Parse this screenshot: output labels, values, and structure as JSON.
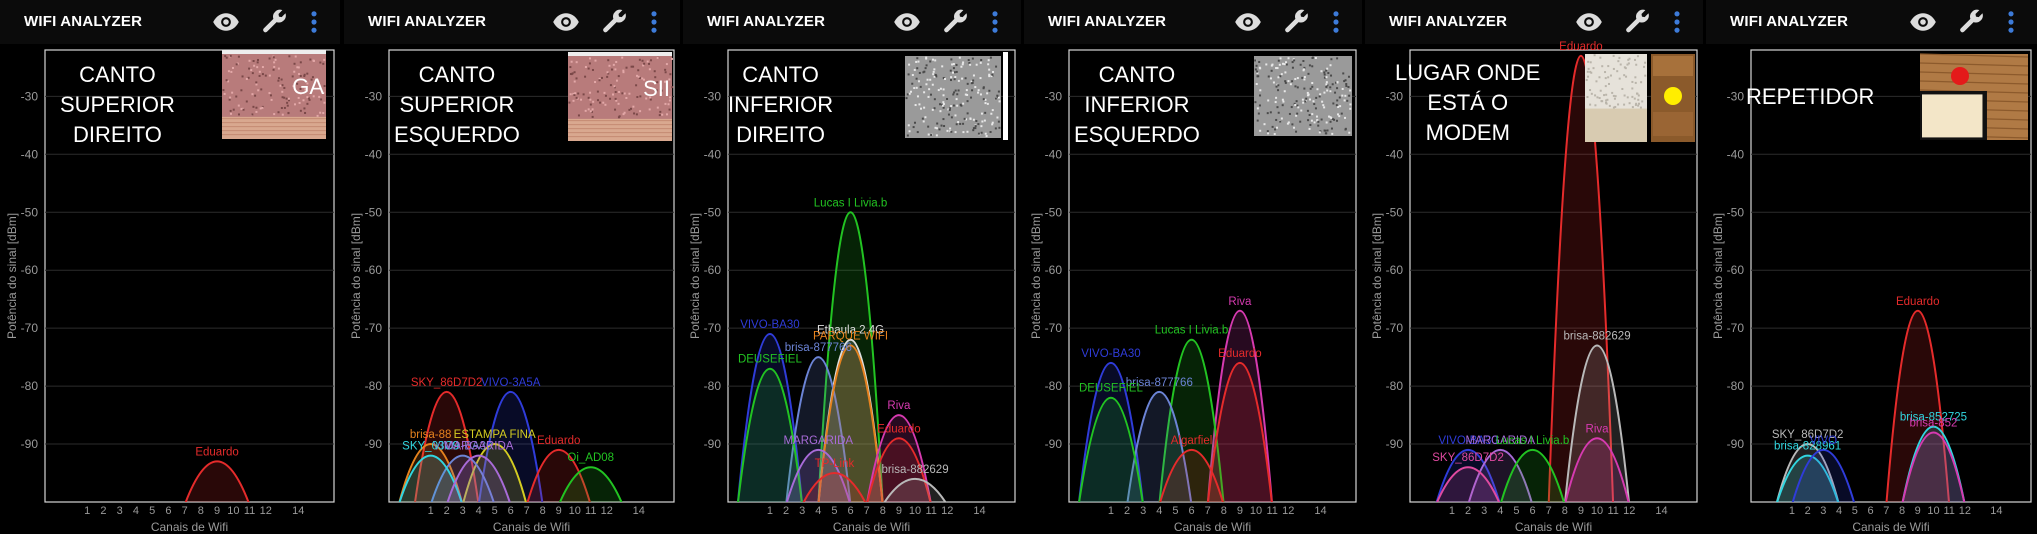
{
  "app": {
    "title": "WIFI ANALYZER",
    "icons": [
      "eye-icon",
      "wrench-icon",
      "more-vert-icon"
    ]
  },
  "axis": {
    "ylabel": "Potência do sinal [dBm]",
    "xlabel": "Canais de Wifi",
    "yticks": [
      -30,
      -40,
      -50,
      -60,
      -70,
      -80,
      -90
    ],
    "xticks": [
      1,
      2,
      3,
      4,
      5,
      6,
      7,
      8,
      9,
      10,
      11,
      12,
      14
    ]
  },
  "colors": {
    "red": "#e52b2b",
    "blue": "#2f3cd9",
    "green": "#22c322",
    "yellow": "#d4cc22",
    "white": "#dddddd",
    "pink": "#d63ab0",
    "cyan": "#31d6e0",
    "violet": "#a86bd8",
    "lightblue": "#6c84d6",
    "orange": "#e6821e",
    "gray": "#b9b9b9",
    "magenta": "#e04aa0"
  },
  "panels": [
    {
      "caption": [
        "CANTO",
        "SUPERIOR",
        "DIREITO"
      ],
      "thumb_text": "GA",
      "chart_data": {
        "type": "area",
        "xlabel": "Canais de Wifi",
        "ylabel": "Potência do sinal [dBm]",
        "ylim": [
          -100,
          -20
        ],
        "series": [
          {
            "name": "Eduardo",
            "channel": 9,
            "dbm": -93,
            "color": "red"
          }
        ]
      }
    },
    {
      "caption": [
        "CANTO",
        "SUPERIOR",
        "ESQUERDO"
      ],
      "thumb_text": "SII",
      "chart_data": {
        "type": "area",
        "xlabel": "Canais de Wifi",
        "ylabel": "Potência do sinal [dBm]",
        "ylim": [
          -100,
          -20
        ],
        "series": [
          {
            "name": "SKY_86D7D2",
            "channel": 2,
            "dbm": -81,
            "color": "red"
          },
          {
            "name": "VIVO-3A5A",
            "channel": 6,
            "dbm": -81,
            "color": "blue"
          },
          {
            "name": "brisa-88",
            "channel": 1,
            "dbm": -90,
            "color": "orange"
          },
          {
            "name": "ESTAMPA FINA",
            "channel": 5,
            "dbm": -90,
            "color": "yellow"
          },
          {
            "name": "VIVO-BA30",
            "channel": 3,
            "dbm": -92,
            "color": "lightblue"
          },
          {
            "name": "Eduardo",
            "channel": 9,
            "dbm": -91,
            "color": "red"
          },
          {
            "name": "SKY_03C9",
            "channel": 1,
            "dbm": -92,
            "color": "cyan"
          },
          {
            "name": "MARGARIDA",
            "channel": 4,
            "dbm": -92,
            "color": "violet"
          },
          {
            "name": "Oi_AD08",
            "channel": 11,
            "dbm": -94,
            "color": "green"
          }
        ]
      }
    },
    {
      "caption": [
        "CANTO",
        "INFERIOR",
        "DIREITO"
      ],
      "thumb_text": "",
      "chart_data": {
        "type": "area",
        "xlabel": "Canais de Wifi",
        "ylabel": "Potência do sinal [dBm]",
        "ylim": [
          -100,
          -20
        ],
        "series": [
          {
            "name": "Lucas I Livia.b",
            "channel": 6,
            "dbm": -50,
            "color": "green"
          },
          {
            "name": "VIVO-BA30",
            "channel": 1,
            "dbm": -71,
            "color": "blue"
          },
          {
            "name": "Ethaula 2.4G",
            "channel": 6,
            "dbm": -72,
            "color": "white"
          },
          {
            "name": "brisa-877766",
            "channel": 4,
            "dbm": -75,
            "color": "lightblue"
          },
          {
            "name": "PARQUE WIFI",
            "channel": 6,
            "dbm": -73,
            "color": "orange"
          },
          {
            "name": "DEUSEFIEL",
            "channel": 1,
            "dbm": -77,
            "color": "green"
          },
          {
            "name": "Riva",
            "channel": 9,
            "dbm": -85,
            "color": "pink"
          },
          {
            "name": "Eduardo",
            "channel": 9,
            "dbm": -89,
            "color": "red"
          },
          {
            "name": "MARGARIDA",
            "channel": 4,
            "dbm": -91,
            "color": "violet"
          },
          {
            "name": "TP-Link",
            "channel": 5,
            "dbm": -95,
            "color": "red"
          },
          {
            "name": "brisa-882629",
            "channel": 10,
            "dbm": -96,
            "color": "gray"
          }
        ]
      }
    },
    {
      "caption": [
        "CANTO",
        "INFERIOR",
        "ESQUERDO"
      ],
      "thumb_text": "",
      "chart_data": {
        "type": "area",
        "xlabel": "Canais de Wifi",
        "ylabel": "Potência do sinal [dBm]",
        "ylim": [
          -100,
          -20
        ],
        "series": [
          {
            "name": "Riva",
            "channel": 9,
            "dbm": -67,
            "color": "pink"
          },
          {
            "name": "Lucas I Livia.b",
            "channel": 6,
            "dbm": -72,
            "color": "green"
          },
          {
            "name": "Eduardo",
            "channel": 9,
            "dbm": -76,
            "color": "red"
          },
          {
            "name": "VIVO-BA30",
            "channel": 1,
            "dbm": -76,
            "color": "blue"
          },
          {
            "name": "brisa-877766",
            "channel": 4,
            "dbm": -81,
            "color": "lightblue"
          },
          {
            "name": "DEUSEFIEL",
            "channel": 1,
            "dbm": -82,
            "color": "green"
          },
          {
            "name": "Algarfiel",
            "channel": 6,
            "dbm": -91,
            "color": "red"
          }
        ]
      }
    },
    {
      "caption": [
        "LUGAR ONDE",
        "ESTÁ O",
        "MODEM"
      ],
      "thumb_text": "",
      "chart_data": {
        "type": "area",
        "xlabel": "Canais de Wifi",
        "ylabel": "Potência do sinal [dBm]",
        "ylim": [
          -100,
          -20
        ],
        "series": [
          {
            "name": "Eduardo",
            "channel": 9,
            "dbm": -23,
            "color": "red"
          },
          {
            "name": "brisa-882629",
            "channel": 10,
            "dbm": -73,
            "color": "gray"
          },
          {
            "name": "Riva",
            "channel": 10,
            "dbm": -89,
            "color": "pink"
          },
          {
            "name": "VIVO-BA30",
            "channel": 2,
            "dbm": -91,
            "color": "blue"
          },
          {
            "name": "MARGARIDA",
            "channel": 4,
            "dbm": -91,
            "color": "violet"
          },
          {
            "name": "Lucas I Livia.b",
            "channel": 6,
            "dbm": -91,
            "color": "green"
          },
          {
            "name": "SKY_86D7D2",
            "channel": 2,
            "dbm": -94,
            "color": "magenta"
          }
        ]
      }
    },
    {
      "caption": [
        "REPETIDOR"
      ],
      "thumb_text": "",
      "chart_data": {
        "type": "area",
        "xlabel": "Canais de Wifi",
        "ylabel": "Potência do sinal [dBm]",
        "ylim": [
          -100,
          -20
        ],
        "series": [
          {
            "name": "Eduardo",
            "channel": 9,
            "dbm": -67,
            "color": "red"
          },
          {
            "name": "brisa-852725",
            "channel": 10,
            "dbm": -87,
            "color": "cyan"
          },
          {
            "name": "brisa-852",
            "channel": 10,
            "dbm": -88,
            "color": "pink"
          },
          {
            "name": "SKY_86D7D2",
            "channel": 2,
            "dbm": -90,
            "color": "gray"
          },
          {
            "name": "brisa-828961",
            "channel": 2,
            "dbm": -92,
            "color": "cyan"
          },
          {
            "name": "VIVO",
            "channel": 3,
            "dbm": -91,
            "color": "blue"
          }
        ]
      }
    }
  ]
}
